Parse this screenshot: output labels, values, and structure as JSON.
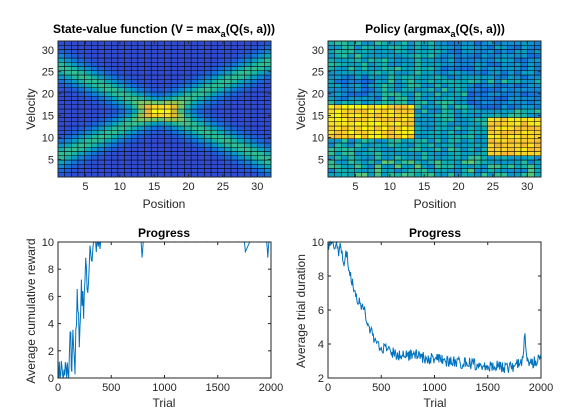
{
  "figure": {
    "background": "#ffffff"
  },
  "chart_data": [
    {
      "type": "heatmap",
      "title_parts": [
        "State-value function (V = max",
        "a",
        "(Q(s, a)))"
      ],
      "xlabel": "Position",
      "ylabel": "Velocity",
      "grid_size": [
        32,
        32
      ],
      "xlim": [
        1,
        32
      ],
      "ylim": [
        1,
        32
      ],
      "xticks": [
        5,
        10,
        15,
        20,
        25,
        30
      ],
      "yticks": [
        5,
        10,
        15,
        20,
        25,
        30
      ],
      "colormap": "parula",
      "pattern": "Low values (dark blue) in the left and right lobes around velocity 16 and in the top/bottom corners; higher values along two diagonal bands crossing at position ~16; peak (yellow) near position 14-17, velocity 15-17."
    },
    {
      "type": "heatmap",
      "title_parts": [
        "Policy (argmax",
        "a",
        "(Q(s, a)))"
      ],
      "xlabel": "Position",
      "ylabel": "Velocity",
      "grid_size": [
        32,
        32
      ],
      "xlim": [
        1,
        32
      ],
      "ylim": [
        1,
        32
      ],
      "xticks": [
        5,
        10,
        15,
        20,
        25,
        30
      ],
      "yticks": [
        5,
        10,
        15,
        20,
        25,
        30
      ],
      "colormap": "parula",
      "pattern": "Noisy mix of action indices; yellow region at low-left (positions 1-13, velocities 10-17) and lower-right (positions 25-32, velocities 6-14); blue bands at upper right and around velocity 17-22 on the right; teal/green elsewhere."
    },
    {
      "type": "line",
      "title": "Progress",
      "xlabel": "Trial",
      "ylabel": "Average cumulative reward",
      "xlim": [
        0,
        2000
      ],
      "ylim": [
        0,
        10
      ],
      "xticks": [
        0,
        500,
        1000,
        1500,
        2000
      ],
      "yticks": [
        0,
        2,
        4,
        6,
        8,
        10
      ],
      "color": "#0072bd",
      "x": [
        0,
        50,
        100,
        120,
        130,
        140,
        160,
        180,
        200,
        220,
        240,
        260,
        280,
        300,
        320,
        340,
        360,
        400,
        500,
        600,
        700,
        780,
        790,
        800,
        900,
        1000,
        1100,
        1200,
        1300,
        1400,
        1500,
        1600,
        1700,
        1750,
        1760,
        1800,
        1900,
        1960,
        1970,
        1980,
        2000
      ],
      "y": [
        0,
        0,
        0,
        3.3,
        0.5,
        3.5,
        0.3,
        6.5,
        2.3,
        7.2,
        4.4,
        8.8,
        6.3,
        9.7,
        8.6,
        10,
        9.3,
        10,
        10,
        10,
        10,
        10,
        8.9,
        10,
        10,
        10,
        10,
        10,
        10,
        10,
        10,
        10,
        10,
        10,
        9.3,
        10,
        10,
        10,
        8.9,
        10,
        10
      ]
    },
    {
      "type": "line",
      "title": "Progress",
      "xlabel": "Trial",
      "ylabel": "Average trial duration",
      "xlim": [
        0,
        2000
      ],
      "ylim": [
        2,
        10
      ],
      "xticks": [
        0,
        500,
        1000,
        1500,
        2000
      ],
      "yticks": [
        2,
        4,
        6,
        8,
        10
      ],
      "color": "#0072bd",
      "x": [
        0,
        20,
        40,
        60,
        80,
        100,
        120,
        150,
        180,
        200,
        230,
        260,
        300,
        350,
        400,
        450,
        500,
        550,
        600,
        700,
        800,
        900,
        1000,
        1100,
        1200,
        1300,
        1400,
        1500,
        1600,
        1650,
        1700,
        1750,
        1800,
        1830,
        1850,
        1870,
        1900,
        1950,
        2000
      ],
      "y": [
        10,
        9.8,
        10,
        9.6,
        10,
        9.2,
        9.7,
        8.6,
        9.4,
        8.3,
        7.8,
        6.8,
        6.4,
        5.8,
        4.8,
        4.2,
        3.8,
        3.6,
        3.5,
        3.3,
        3.4,
        3.2,
        3.1,
        3.0,
        2.9,
        2.9,
        2.8,
        2.7,
        2.7,
        2.6,
        2.6,
        2.7,
        2.8,
        3.2,
        4.6,
        3.0,
        2.9,
        3.0,
        3.2
      ]
    }
  ]
}
